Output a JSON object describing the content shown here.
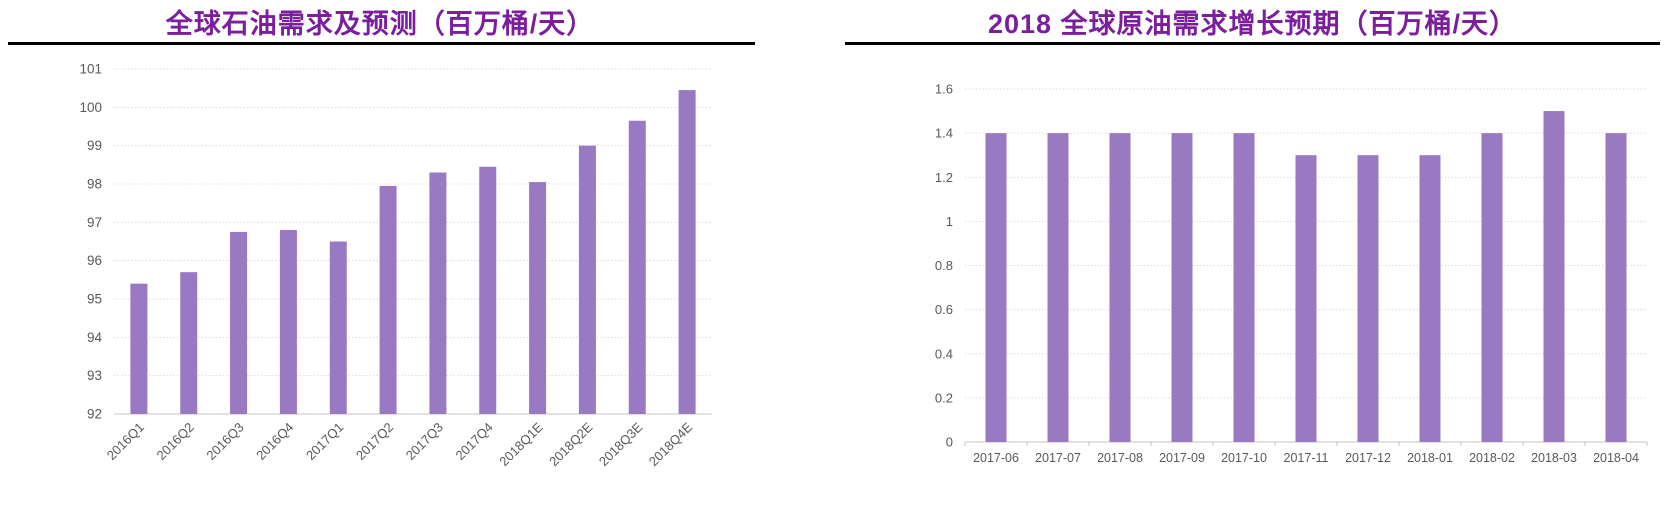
{
  "page": {
    "background": "#ffffff"
  },
  "colors": {
    "title_text": "#7B1E9E",
    "title_rule": "#000000",
    "bar_fill": "#9879C2",
    "gridline": "#D9D9D9",
    "axis_line": "#C6C6C6",
    "tick_label": "#595959"
  },
  "chart_data": [
    {
      "type": "bar",
      "title": "全球石油需求及预测（百万桶/天）",
      "categories": [
        "2016Q1",
        "2016Q2",
        "2016Q3",
        "2016Q4",
        "2017Q1",
        "2017Q2",
        "2017Q3",
        "2017Q4",
        "2018Q1E",
        "2018Q2E",
        "2018Q3E",
        "2018Q4E"
      ],
      "values": [
        95.4,
        95.7,
        96.75,
        96.8,
        96.5,
        97.95,
        98.3,
        98.45,
        98.05,
        99.0,
        99.65,
        100.45
      ],
      "xlabel": "",
      "ylabel": "",
      "ylim": [
        92,
        101
      ],
      "y_step": 1,
      "grid": true,
      "legend": false,
      "x_label_rotation": -45,
      "baseline_ticks": false
    },
    {
      "type": "bar",
      "title": "2018 全球原油需求增长预期（百万桶/天）",
      "categories": [
        "2017-06",
        "2017-07",
        "2017-08",
        "2017-09",
        "2017-10",
        "2017-11",
        "2017-12",
        "2018-01",
        "2018-02",
        "2018-03",
        "2018-04"
      ],
      "values": [
        1.4,
        1.4,
        1.4,
        1.4,
        1.4,
        1.3,
        1.3,
        1.3,
        1.4,
        1.5,
        1.4
      ],
      "xlabel": "",
      "ylabel": "",
      "ylim": [
        0,
        1.6
      ],
      "y_step": 0.2,
      "grid": true,
      "legend": false,
      "x_label_rotation": 0,
      "baseline_ticks": true
    }
  ]
}
